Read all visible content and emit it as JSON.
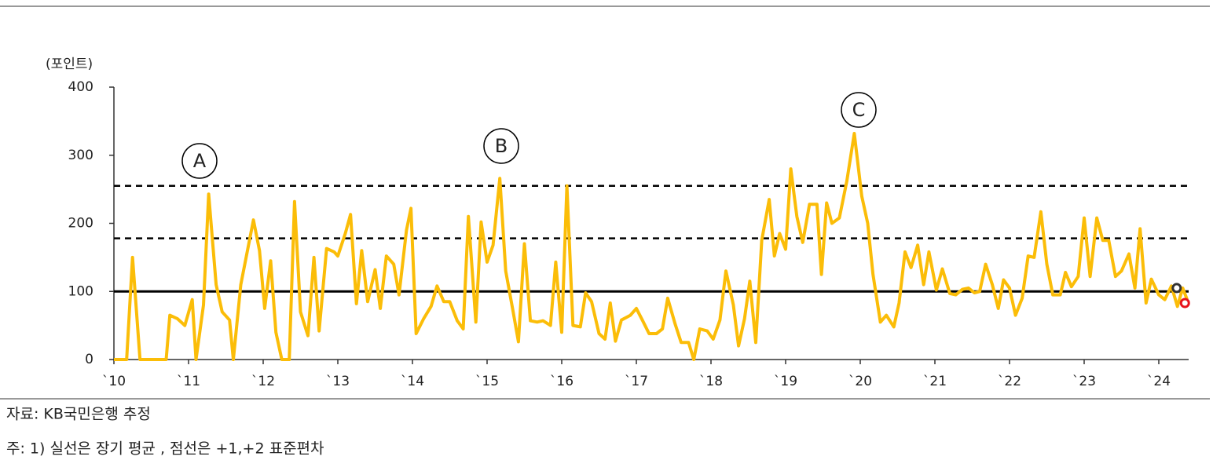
{
  "chart_data": {
    "type": "line",
    "unit_label": "(포인트)",
    "source": "자료: KB국민은행 추정",
    "note": "주: 1) 실선은 장기 평균 , 점선은 +1,+2 표준편차",
    "xlim": [
      2010,
      2024.4
    ],
    "ylim": [
      0,
      400
    ],
    "yticks": [
      0,
      100,
      200,
      300,
      400
    ],
    "xticks": [
      {
        "value": 2010,
        "label": "`10"
      },
      {
        "value": 2011,
        "label": "`11"
      },
      {
        "value": 2012,
        "label": "`12"
      },
      {
        "value": 2013,
        "label": "`13"
      },
      {
        "value": 2014,
        "label": "`14"
      },
      {
        "value": 2015,
        "label": "`15"
      },
      {
        "value": 2016,
        "label": "`16"
      },
      {
        "value": 2017,
        "label": "`17"
      },
      {
        "value": 2018,
        "label": "`18"
      },
      {
        "value": 2019,
        "label": "`19"
      },
      {
        "value": 2020,
        "label": "`20"
      },
      {
        "value": 2021,
        "label": "`21"
      },
      {
        "value": 2022,
        "label": "`22"
      },
      {
        "value": 2023,
        "label": "`23"
      },
      {
        "value": 2024,
        "label": "`24"
      }
    ],
    "x": [
      2010.0,
      2010.17,
      2010.25,
      2010.35,
      2010.7,
      2010.75,
      2010.85,
      2010.95,
      2011.05,
      2011.1,
      2011.2,
      2011.27,
      2011.37,
      2011.45,
      2011.55,
      2011.6,
      2011.7,
      2011.87,
      2011.95,
      2012.02,
      2012.1,
      2012.17,
      2012.25,
      2012.35,
      2012.42,
      2012.5,
      2012.6,
      2012.68,
      2012.75,
      2012.85,
      2012.95,
      2013.0,
      2013.1,
      2013.17,
      2013.25,
      2013.32,
      2013.4,
      2013.5,
      2013.57,
      2013.65,
      2013.75,
      2013.82,
      2013.92,
      2013.98,
      2014.05,
      2014.15,
      2014.25,
      2014.33,
      2014.42,
      2014.5,
      2014.6,
      2014.68,
      2014.75,
      2014.85,
      2014.92,
      2015.0,
      2015.08,
      2015.17,
      2015.25,
      2015.35,
      2015.42,
      2015.5,
      2015.58,
      2015.67,
      2015.75,
      2015.85,
      2015.92,
      2016.0,
      2016.07,
      2016.15,
      2016.25,
      2016.32,
      2016.4,
      2016.5,
      2016.58,
      2016.65,
      2016.72,
      2016.8,
      2016.92,
      2017.0,
      2017.08,
      2017.17,
      2017.27,
      2017.35,
      2017.42,
      2017.52,
      2017.6,
      2017.7,
      2017.77,
      2017.85,
      2017.95,
      2018.03,
      2018.12,
      2018.2,
      2018.3,
      2018.37,
      2018.45,
      2018.52,
      2018.6,
      2018.68,
      2018.78,
      2018.85,
      2018.92,
      2019.0,
      2019.07,
      2019.15,
      2019.23,
      2019.32,
      2019.42,
      2019.48,
      2019.55,
      2019.62,
      2019.72,
      2019.82,
      2019.92,
      2020.02,
      2020.1,
      2020.17,
      2020.27,
      2020.35,
      2020.45,
      2020.52,
      2020.6,
      2020.68,
      2020.77,
      2020.85,
      2020.92,
      2021.02,
      2021.1,
      2021.2,
      2021.28,
      2021.37,
      2021.45,
      2021.53,
      2021.6,
      2021.68,
      2021.77,
      2021.85,
      2021.92,
      2022.0,
      2022.08,
      2022.17,
      2022.25,
      2022.33,
      2022.42,
      2022.5,
      2022.58,
      2022.68,
      2022.75,
      2022.83,
      2022.92,
      2023.0,
      2023.08,
      2023.17,
      2023.25,
      2023.33,
      2023.42,
      2023.5,
      2023.6,
      2023.68,
      2023.75,
      2023.83,
      2023.9,
      2024.0,
      2024.08,
      2024.17,
      2024.25,
      2024.32,
      2024.38
    ],
    "series": [
      {
        "color": "#fbbd08",
        "values": [
          0,
          0,
          150,
          0,
          0,
          65,
          60,
          50,
          88,
          0,
          80,
          243,
          110,
          70,
          58,
          0,
          110,
          205,
          160,
          75,
          145,
          40,
          0,
          0,
          232,
          70,
          35,
          150,
          42,
          163,
          158,
          152,
          185,
          213,
          82,
          160,
          85,
          132,
          75,
          152,
          140,
          95,
          190,
          222,
          38,
          60,
          78,
          108,
          85,
          85,
          57,
          45,
          210,
          55,
          202,
          143,
          168,
          266,
          130,
          70,
          26,
          170,
          57,
          55,
          57,
          50,
          143,
          40,
          255,
          50,
          48,
          98,
          85,
          38,
          30,
          83,
          27,
          58,
          65,
          75,
          58,
          38,
          38,
          45,
          90,
          52,
          25,
          25,
          0,
          45,
          42,
          30,
          58,
          130,
          80,
          20,
          60,
          115,
          25,
          175,
          235,
          152,
          185,
          162,
          280,
          210,
          172,
          228,
          228,
          125,
          230,
          200,
          208,
          262,
          332,
          240,
          200,
          125,
          55,
          65,
          48,
          83,
          158,
          135,
          168,
          110,
          158,
          102,
          133,
          97,
          95,
          103,
          105,
          98,
          100,
          140,
          110,
          75,
          117,
          105,
          65,
          90,
          152,
          150,
          217,
          140,
          95,
          95,
          128,
          107,
          122,
          208,
          122,
          208,
          175,
          175,
          122,
          130,
          155,
          105,
          192,
          83,
          118,
          95,
          88,
          108,
          78,
          105,
          88
        ]
      }
    ],
    "reference_lines": [
      {
        "value": 100,
        "style": "solid"
      },
      {
        "value": 178,
        "style": "dashed"
      },
      {
        "value": 255,
        "style": "dashed"
      }
    ],
    "markers": [
      {
        "x": 2024.24,
        "y": 105,
        "color": "#333333"
      },
      {
        "x": 2024.35,
        "y": 83,
        "color": "#e8141c"
      }
    ],
    "annotations": [
      "A",
      "B",
      "C"
    ]
  }
}
